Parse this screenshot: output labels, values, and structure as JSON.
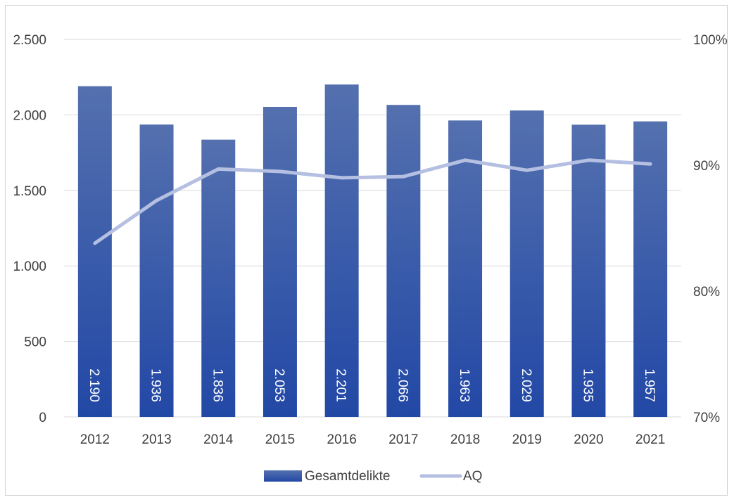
{
  "chart_data": {
    "type": "bar",
    "categories": [
      "2012",
      "2013",
      "2014",
      "2015",
      "2016",
      "2017",
      "2018",
      "2019",
      "2020",
      "2021"
    ],
    "series": [
      {
        "name": "Gesamtdelikte",
        "type": "bar",
        "axis": "left",
        "values": [
          2190,
          1936,
          1836,
          2053,
          2201,
          2066,
          1963,
          2029,
          1935,
          1957
        ],
        "labels": [
          "2.190",
          "1.936",
          "1.836",
          "2.053",
          "2.201",
          "2.066",
          "1.963",
          "2.029",
          "1.935",
          "1.957"
        ]
      },
      {
        "name": "AQ",
        "type": "line",
        "axis": "right",
        "values": [
          83.8,
          87.2,
          89.7,
          89.5,
          89.0,
          89.1,
          90.4,
          89.6,
          90.4,
          90.1
        ]
      }
    ],
    "y_left": {
      "min": 0,
      "max": 2500,
      "ticks": [
        0,
        500,
        1000,
        1500,
        2000,
        2500
      ],
      "tick_labels": [
        "0",
        "500",
        "1.000",
        "1.500",
        "2.000",
        "2.500"
      ]
    },
    "y_right": {
      "min": 70,
      "max": 100,
      "ticks": [
        70,
        80,
        90,
        100
      ],
      "tick_labels": [
        "70%",
        "80%",
        "90%",
        "100%"
      ]
    },
    "grid": true,
    "legend": "bottom-center",
    "colors": {
      "bar_top": "#5470ae",
      "bar_bottom": "#2248a6",
      "line": "#b4bfe1",
      "grid": "#d9d9d9",
      "text": "#404040"
    }
  }
}
